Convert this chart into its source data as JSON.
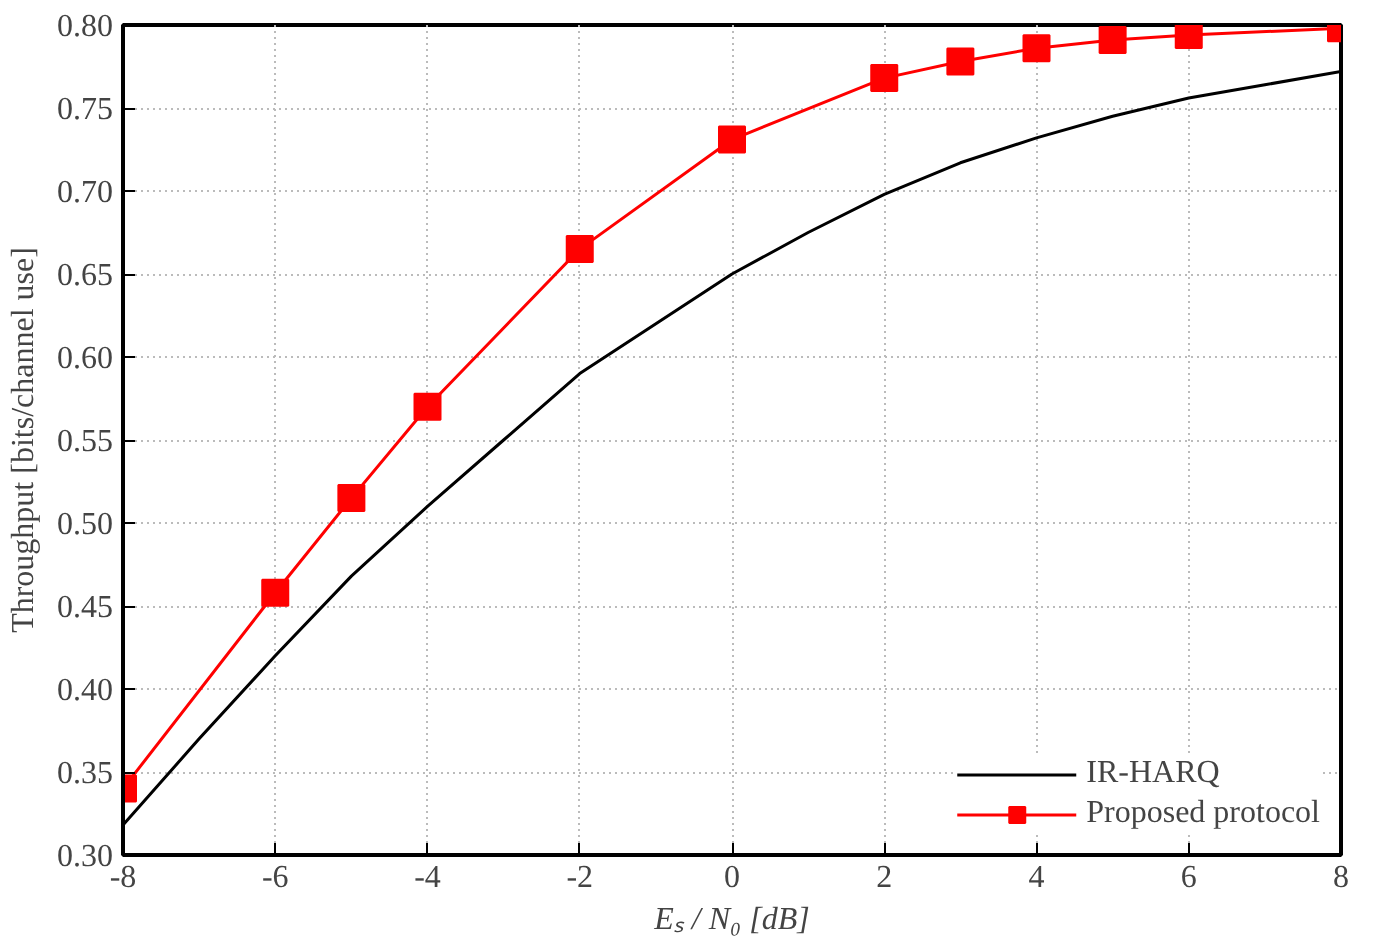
{
  "chart_data": {
    "type": "line",
    "xlabel": "Eₛ / N₀ [dB]",
    "ylabel": "Throughput [bits/channel use]",
    "xlim": [
      -8,
      8
    ],
    "xticks": [
      -8,
      -6,
      -4,
      -2,
      0,
      2,
      4,
      6,
      8
    ],
    "ylim": [
      0.3,
      0.8
    ],
    "yticks": [
      {
        "value": 0.3,
        "label": "0.30"
      },
      {
        "value": 0.35,
        "label": "0.35"
      },
      {
        "value": 0.4,
        "label": "0.40"
      },
      {
        "value": 0.45,
        "label": "0.45"
      },
      {
        "value": 0.5,
        "label": "0.50"
      },
      {
        "value": 0.55,
        "label": "0.55"
      },
      {
        "value": 0.6,
        "label": "0.60"
      },
      {
        "value": 0.65,
        "label": "0.65"
      },
      {
        "value": 0.7,
        "label": "0.70"
      },
      {
        "value": 0.75,
        "label": "0.75"
      },
      {
        "value": 0.8,
        "label": "0.80"
      }
    ],
    "grid": true,
    "legend": "bottom right",
    "series": [
      {
        "name": "IR-HARQ",
        "color": "#000000",
        "marker": "none",
        "x": [
          -8,
          -7,
          -6,
          -5,
          -4,
          -3,
          -2,
          -1,
          0,
          1,
          2,
          3,
          4,
          5,
          6,
          7,
          8
        ],
        "values": [
          0.318,
          0.37,
          0.42,
          0.468,
          0.51,
          0.55,
          0.59,
          0.62,
          0.65,
          0.675,
          0.698,
          0.717,
          0.732,
          0.745,
          0.756,
          0.764,
          0.772
        ]
      },
      {
        "name": "Proposed protocol",
        "color": "#ff0000",
        "marker": "square",
        "x": [
          -8,
          -6,
          -5,
          -4,
          -2,
          0,
          2,
          3,
          4,
          5,
          6,
          8
        ],
        "values": [
          0.34,
          0.458,
          0.515,
          0.57,
          0.665,
          0.731,
          0.768,
          0.778,
          0.786,
          0.791,
          0.794,
          0.798
        ]
      }
    ]
  }
}
